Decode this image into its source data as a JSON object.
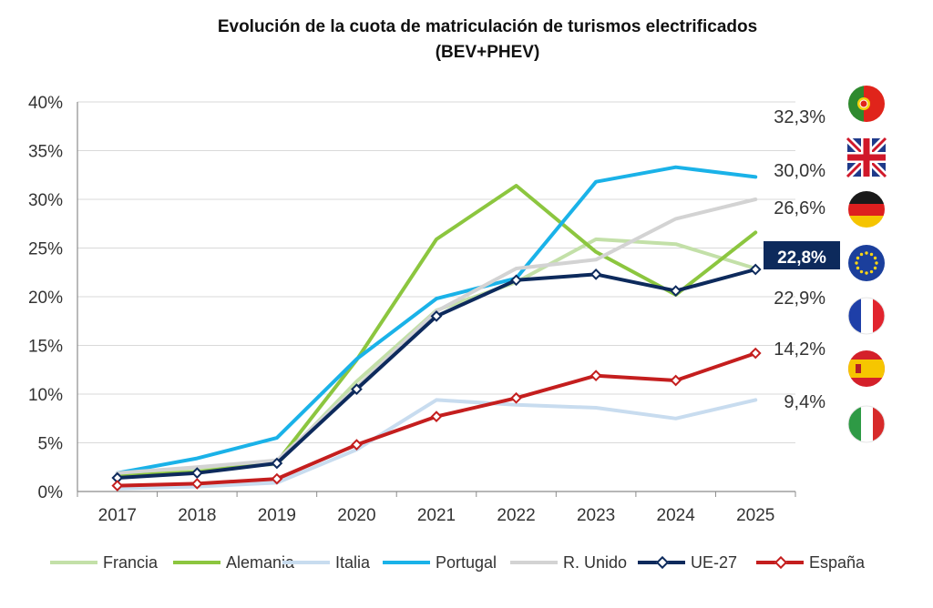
{
  "chart_data": {
    "type": "line",
    "title": "Evolución de la cuota de matriculación de turismos electrificados",
    "subtitle": "(BEV+PHEV)",
    "xlabel": "",
    "ylabel": "",
    "categories": [
      "2017",
      "2018",
      "2019",
      "2020",
      "2021",
      "2022",
      "2023",
      "2024",
      "2025"
    ],
    "ylim": [
      0,
      40
    ],
    "yticks": [
      "0%",
      "5%",
      "10%",
      "15%",
      "20%",
      "25%",
      "30%",
      "35%",
      "40%"
    ],
    "series": [
      {
        "name": "Francia",
        "color": "#c3e0a8",
        "marker": false,
        "values": [
          1.8,
          2.4,
          2.8,
          11.3,
          18.6,
          21.5,
          25.9,
          25.4,
          22.9
        ]
      },
      {
        "name": "Alemania",
        "color": "#8cc63f",
        "marker": false,
        "values": [
          1.6,
          2.0,
          3.0,
          13.5,
          25.9,
          31.4,
          24.6,
          20.2,
          26.6
        ]
      },
      {
        "name": "Italia",
        "color": "#c8dcef",
        "marker": false,
        "values": [
          0.3,
          0.5,
          0.9,
          4.3,
          9.4,
          8.9,
          8.6,
          7.5,
          9.4
        ]
      },
      {
        "name": "Portugal",
        "color": "#1ab2e8",
        "marker": false,
        "values": [
          1.9,
          3.4,
          5.5,
          13.6,
          19.8,
          21.9,
          31.8,
          33.3,
          32.3
        ]
      },
      {
        "name": "R. Unido",
        "color": "#d3d3d3",
        "marker": false,
        "values": [
          1.9,
          2.5,
          3.2,
          10.7,
          18.5,
          22.9,
          23.8,
          28.0,
          30.0
        ]
      },
      {
        "name": "UE-27",
        "color": "#0d2a5c",
        "marker": true,
        "values": [
          1.4,
          1.9,
          2.9,
          10.5,
          18.0,
          21.7,
          22.3,
          20.6,
          22.8
        ]
      },
      {
        "name": "España",
        "color": "#c41e1e",
        "marker": true,
        "values": [
          0.6,
          0.8,
          1.3,
          4.8,
          7.7,
          9.6,
          11.9,
          11.4,
          14.2
        ]
      }
    ],
    "end_labels": [
      {
        "text": "32,3%",
        "country": "Portugal"
      },
      {
        "text": "30,0%",
        "country": "R. Unido"
      },
      {
        "text": "26,6%",
        "country": "Alemania"
      },
      {
        "text": "22,8%",
        "country": "UE-27",
        "highlight": true
      },
      {
        "text": "22,9%",
        "country": "Francia"
      },
      {
        "text": "14,2%",
        "country": "España"
      },
      {
        "text": "9,4%",
        "country": "Italia"
      }
    ],
    "flags": [
      "portugal-flag",
      "uk-flag",
      "germany-flag",
      "eu-flag",
      "france-flag",
      "spain-flag",
      "italy-flag"
    ]
  }
}
